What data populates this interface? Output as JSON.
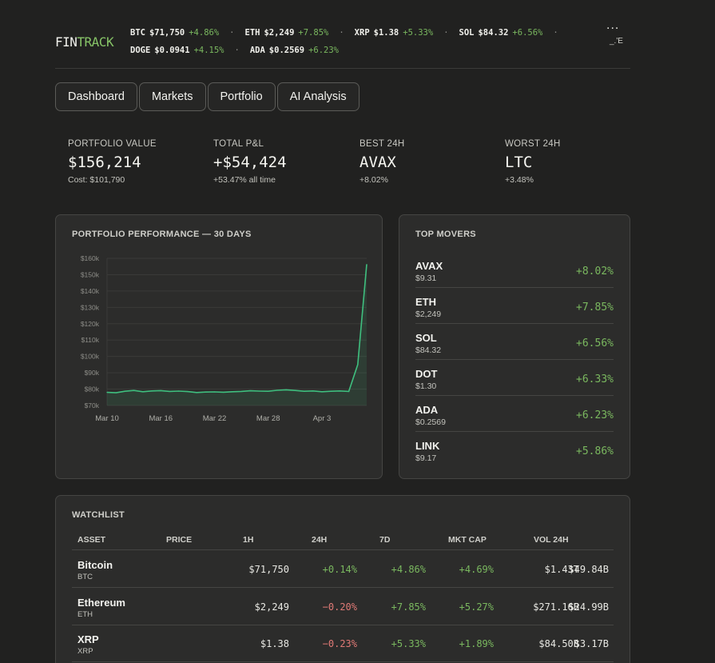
{
  "brand": {
    "fin": "FIN",
    "track": "TRACK"
  },
  "ticker": {
    "row1": [
      {
        "sym": "BTC",
        "price": "$71,750",
        "chg": "+4.86%"
      },
      {
        "sym": "ETH",
        "price": "$2,249",
        "chg": "+7.85%"
      },
      {
        "sym": "XRP",
        "price": "$1.38",
        "chg": "+5.33%"
      },
      {
        "sym": "SOL",
        "price": "$84.32",
        "chg": "+6.56%"
      }
    ],
    "row2": [
      {
        "sym": "DOGE",
        "price": "$0.0941",
        "chg": "+4.15%"
      },
      {
        "sym": "ADA",
        "price": "$0.2569",
        "chg": "+6.23%"
      }
    ],
    "separator": "·",
    "more_icon": "...",
    "more_sub": "_.'E"
  },
  "tabs": [
    "Dashboard",
    "Markets",
    "Portfolio",
    "AI Analysis"
  ],
  "stats": [
    {
      "label": "PORTFOLIO VALUE",
      "value": "$156,214",
      "sub": "Cost: $101,790",
      "tone": "neutral"
    },
    {
      "label": "TOTAL P&L",
      "value": "+$54,424",
      "sub": "+53.47% all time",
      "tone": "green"
    },
    {
      "label": "BEST 24H",
      "value": "AVAX",
      "sub": "+8.02%",
      "tone": "green"
    },
    {
      "label": "WORST 24H",
      "value": "LTC",
      "sub": "+3.48%",
      "tone": "red"
    }
  ],
  "performance": {
    "title": "PORTFOLIO PERFORMANCE — 30 DAYS",
    "chart_data": {
      "type": "area",
      "title": "PORTFOLIO PERFORMANCE — 30 DAYS",
      "x_ticks": [
        "Mar 10",
        "Mar 16",
        "Mar 22",
        "Mar 28",
        "Apr 3"
      ],
      "y_ticks": [
        "$70k",
        "$80k",
        "$90k",
        "$100k",
        "$110k",
        "$120k",
        "$130k",
        "$140k",
        "$150k",
        "$160k"
      ],
      "ylim": [
        70000,
        160000
      ],
      "x": [
        "Mar 10",
        "Mar 11",
        "Mar 12",
        "Mar 13",
        "Mar 14",
        "Mar 15",
        "Mar 16",
        "Mar 17",
        "Mar 18",
        "Mar 19",
        "Mar 20",
        "Mar 21",
        "Mar 22",
        "Mar 23",
        "Mar 24",
        "Mar 25",
        "Mar 26",
        "Mar 27",
        "Mar 28",
        "Mar 29",
        "Mar 30",
        "Mar 31",
        "Apr 1",
        "Apr 2",
        "Apr 3",
        "Apr 4",
        "Apr 5",
        "Apr 6",
        "Apr 7",
        "Apr 8"
      ],
      "values": [
        78000,
        77800,
        78700,
        79200,
        78400,
        78900,
        79100,
        78600,
        78800,
        78500,
        77900,
        78200,
        78300,
        78100,
        78400,
        78600,
        79000,
        78800,
        78700,
        79300,
        79600,
        79200,
        78700,
        78900,
        78400,
        78700,
        78900,
        78600,
        95000,
        156214
      ],
      "color": "#3fbf7f",
      "grid": true
    }
  },
  "movers": {
    "title": "TOP MOVERS",
    "items": [
      {
        "sym": "AVAX",
        "price": "$9.31",
        "chg": "+8.02%"
      },
      {
        "sym": "ETH",
        "price": "$2,249",
        "chg": "+7.85%"
      },
      {
        "sym": "SOL",
        "price": "$84.32",
        "chg": "+6.56%"
      },
      {
        "sym": "DOT",
        "price": "$1.30",
        "chg": "+6.33%"
      },
      {
        "sym": "ADA",
        "price": "$0.2569",
        "chg": "+6.23%"
      },
      {
        "sym": "LINK",
        "price": "$9.17",
        "chg": "+5.86%"
      }
    ]
  },
  "watchlist": {
    "title": "WATCHLIST",
    "columns": [
      "ASSET",
      "PRICE",
      "1H",
      "24H",
      "7D",
      "MKT CAP",
      "VOL 24H"
    ],
    "rows": [
      {
        "name": "Bitcoin",
        "sym": "BTC",
        "price": "$71,750",
        "h1": "+0.14%",
        "h24": "+4.86%",
        "d7": "+4.69%",
        "mcap": "$1.43T",
        "vol": "$49.84B"
      },
      {
        "name": "Ethereum",
        "sym": "ETH",
        "price": "$2,249",
        "h1": "−0.20%",
        "h24": "+7.85%",
        "d7": "+5.27%",
        "mcap": "$271.16B",
        "vol": "$24.99B"
      },
      {
        "name": "XRP",
        "sym": "XRP",
        "price": "$1.38",
        "h1": "−0.23%",
        "h24": "+5.33%",
        "d7": "+1.89%",
        "mcap": "$84.50B",
        "vol": "$3.17B"
      }
    ]
  },
  "colors": {
    "accent": "#86c367",
    "positive": "#7ab85f",
    "negative": "#e07a76",
    "line": "#3fbf7f"
  }
}
